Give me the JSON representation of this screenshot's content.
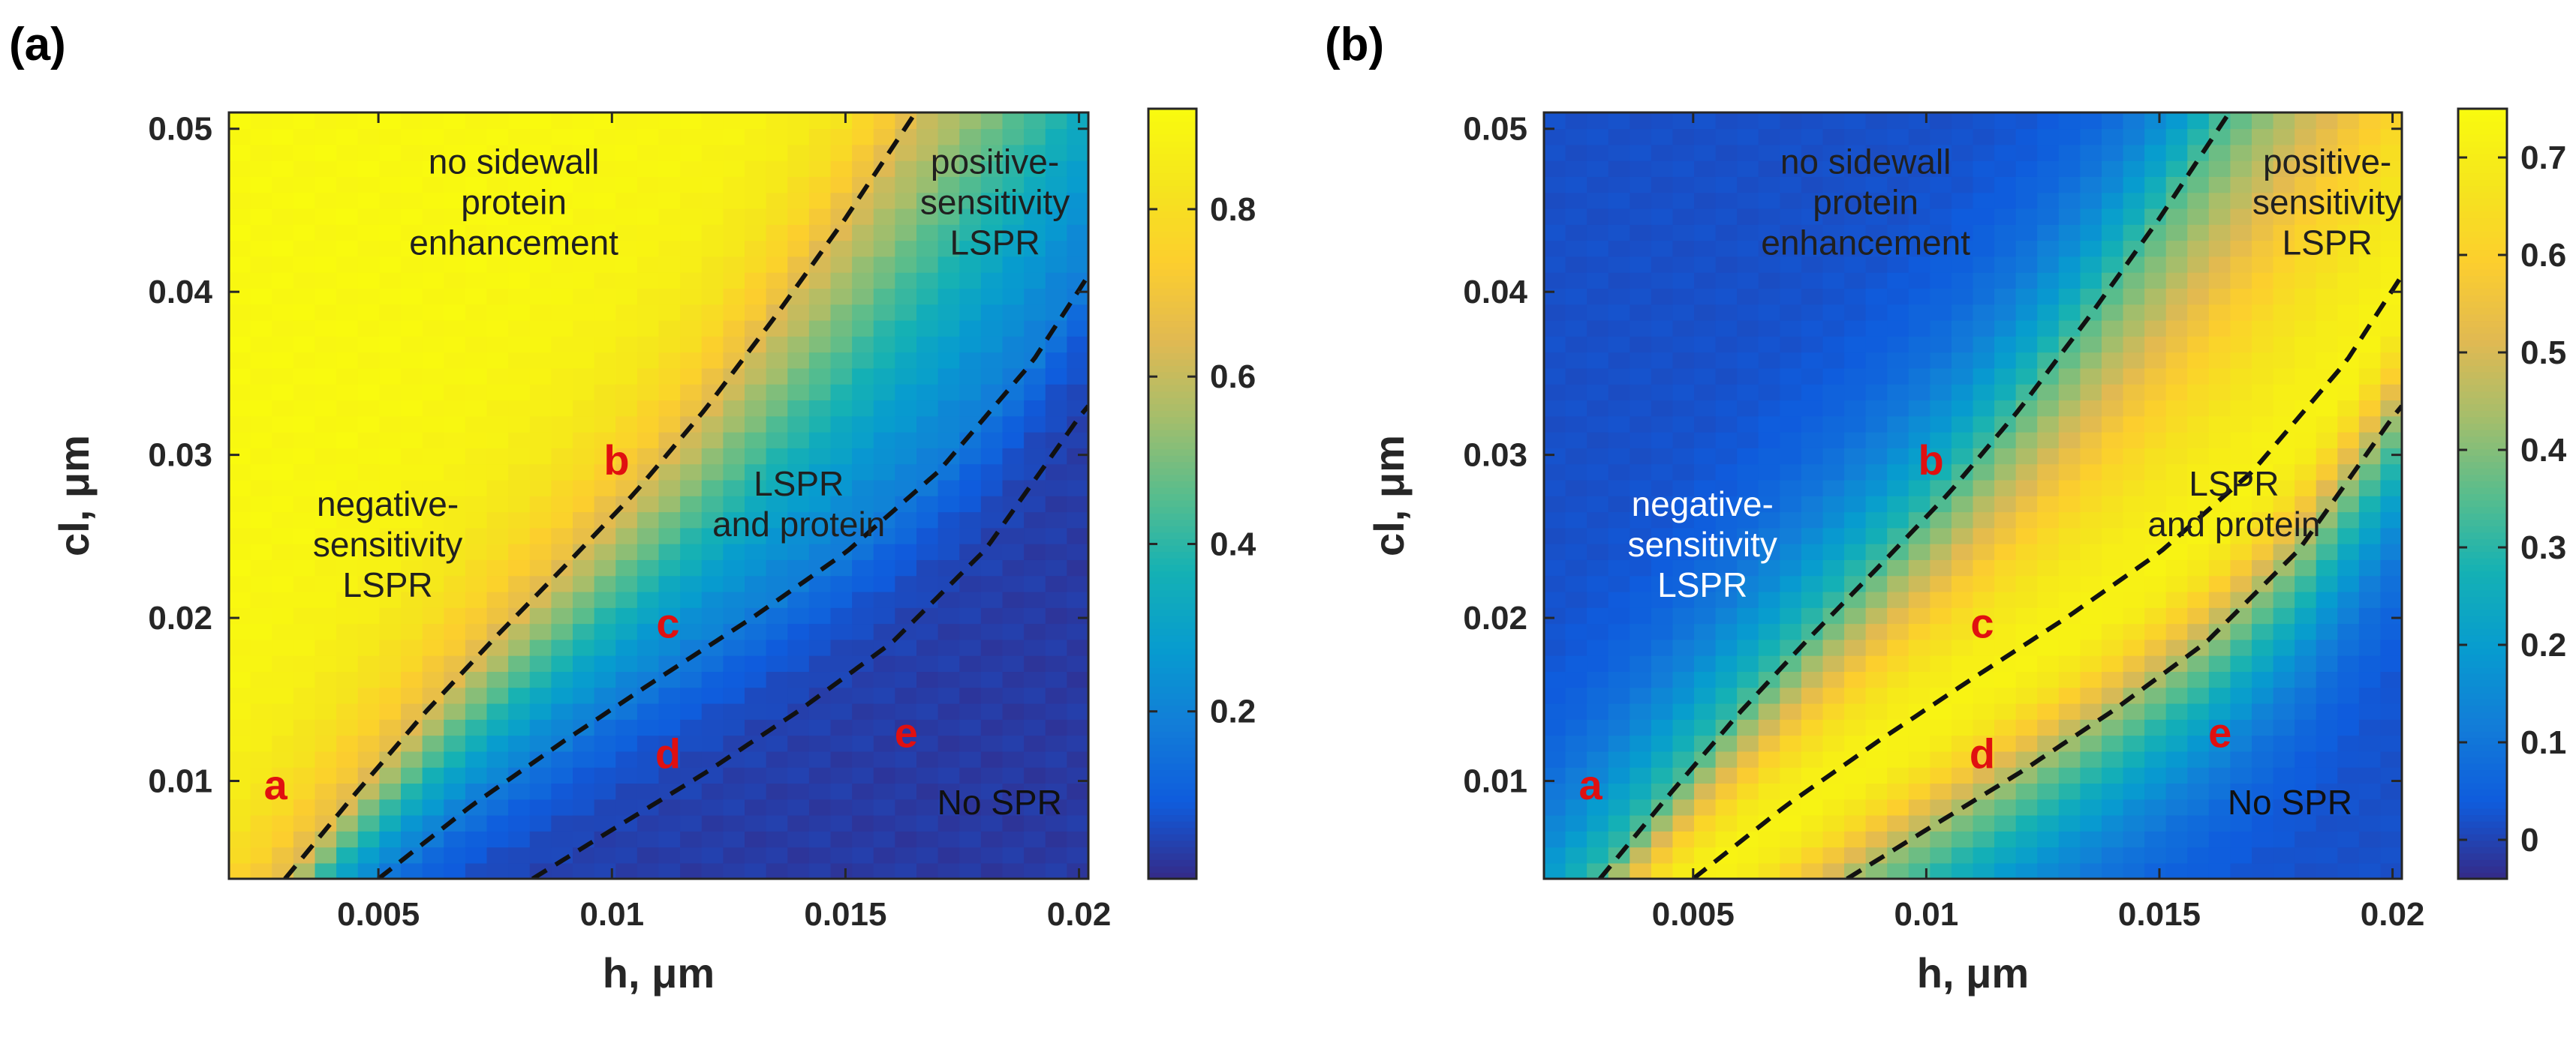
{
  "figure": {
    "type": "heatmap"
  },
  "chart_data": [
    {
      "type": "heatmap",
      "panel_label": "(a)",
      "xlabel_main": "h, ",
      "xlabel_unit": "μm",
      "ylabel_main": "cl, ",
      "ylabel_unit": "μm",
      "xlim": [
        0.0018,
        0.0202
      ],
      "ylim": [
        0.004,
        0.051
      ],
      "xticks": [
        0.005,
        0.01,
        0.015,
        0.02
      ],
      "xtick_labels": [
        "0.005",
        "0.01",
        "0.015",
        "0.02"
      ],
      "yticks": [
        0.01,
        0.02,
        0.03,
        0.04,
        0.05
      ],
      "ytick_labels": [
        "0.01",
        "0.02",
        "0.03",
        "0.04",
        "0.05"
      ],
      "colorbar": {
        "min": 0.0,
        "max": 0.92,
        "ticks": [
          0.2,
          0.4,
          0.6,
          0.8
        ],
        "tick_labels": [
          "0.2",
          "0.4",
          "0.6",
          "0.8"
        ]
      },
      "field": {
        "mode": "descending",
        "high": 0.91,
        "low": 0.03,
        "contrast": 0.1
      },
      "dashed_curves": [
        {
          "name": "boundary-1",
          "h": [
            0.003,
            0.0045,
            0.006,
            0.0075,
            0.009,
            0.0105,
            0.012,
            0.0135,
            0.015,
            0.0165
          ],
          "cl": [
            0.004,
            0.0092,
            0.0142,
            0.0188,
            0.0232,
            0.0277,
            0.0328,
            0.0385,
            0.0445,
            0.051
          ]
        },
        {
          "name": "boundary-2",
          "h": [
            0.005,
            0.007,
            0.009,
            0.011,
            0.013,
            0.015,
            0.017,
            0.019,
            0.0202
          ],
          "cl": [
            0.004,
            0.0085,
            0.0125,
            0.0163,
            0.02,
            0.024,
            0.029,
            0.0357,
            0.041
          ]
        },
        {
          "name": "boundary-3",
          "h": [
            0.0083,
            0.01,
            0.012,
            0.014,
            0.016,
            0.018,
            0.02,
            0.0202
          ],
          "cl": [
            0.004,
            0.007,
            0.0105,
            0.0143,
            0.0185,
            0.0242,
            0.0323,
            0.033
          ]
        }
      ],
      "region_labels": [
        {
          "lines": [
            "no sidewall",
            "protein",
            "enhancement"
          ],
          "h": 0.0079,
          "cl": 0.0455,
          "color": "#202020"
        },
        {
          "lines": [
            "positive-",
            "sensitivity",
            "LSPR"
          ],
          "h": 0.0182,
          "cl": 0.0455,
          "color": "#202020"
        },
        {
          "lines": [
            "negative-",
            "sensitivity",
            "LSPR"
          ],
          "h": 0.0052,
          "cl": 0.0245,
          "color": "#202020"
        },
        {
          "lines": [
            "LSPR",
            "and protein"
          ],
          "h": 0.014,
          "cl": 0.027,
          "color": "#202020"
        },
        {
          "lines": [
            "No SPR"
          ],
          "h": 0.0183,
          "cl": 0.0087,
          "color": "#101010"
        }
      ],
      "point_labels": [
        {
          "text": "a",
          "h": 0.0028,
          "cl": 0.0098
        },
        {
          "text": "b",
          "h": 0.0101,
          "cl": 0.0297
        },
        {
          "text": "c",
          "h": 0.0112,
          "cl": 0.0197
        },
        {
          "text": "d",
          "h": 0.0112,
          "cl": 0.0117
        },
        {
          "text": "e",
          "h": 0.0163,
          "cl": 0.013
        }
      ]
    },
    {
      "type": "heatmap",
      "panel_label": "(b)",
      "xlabel_main": "h, ",
      "xlabel_unit": "μm",
      "ylabel_main": "cl, ",
      "ylabel_unit": "μm",
      "xlim": [
        0.0018,
        0.0202
      ],
      "ylim": [
        0.004,
        0.051
      ],
      "xticks": [
        0.005,
        0.01,
        0.015,
        0.02
      ],
      "xtick_labels": [
        "0.005",
        "0.01",
        "0.015",
        "0.02"
      ],
      "yticks": [
        0.01,
        0.02,
        0.03,
        0.04,
        0.05
      ],
      "ytick_labels": [
        "0.01",
        "0.02",
        "0.03",
        "0.04",
        "0.05"
      ],
      "colorbar": {
        "min": -0.04,
        "max": 0.75,
        "ticks": [
          0,
          0.1,
          0.2,
          0.3,
          0.4,
          0.5,
          0.6,
          0.7
        ],
        "tick_labels": [
          "0",
          "0.1",
          "0.2",
          "0.3",
          "0.4",
          "0.5",
          "0.6",
          "0.7"
        ]
      },
      "field": {
        "mode": "ridge",
        "high": 0.72,
        "low": 0.02,
        "contrast": 0.06
      },
      "dashed_curves": [
        {
          "name": "boundary-1",
          "h": [
            0.003,
            0.0045,
            0.006,
            0.0075,
            0.009,
            0.0105,
            0.012,
            0.0135,
            0.015,
            0.0165
          ],
          "cl": [
            0.004,
            0.0092,
            0.0142,
            0.0188,
            0.0232,
            0.0277,
            0.0328,
            0.0385,
            0.0445,
            0.051
          ]
        },
        {
          "name": "boundary-2",
          "h": [
            0.005,
            0.007,
            0.009,
            0.011,
            0.013,
            0.015,
            0.017,
            0.019,
            0.0202
          ],
          "cl": [
            0.004,
            0.0085,
            0.0125,
            0.0163,
            0.02,
            0.024,
            0.029,
            0.0357,
            0.041
          ]
        },
        {
          "name": "boundary-3",
          "h": [
            0.0083,
            0.01,
            0.012,
            0.014,
            0.016,
            0.018,
            0.02,
            0.0202
          ],
          "cl": [
            0.004,
            0.007,
            0.0105,
            0.0143,
            0.0185,
            0.0242,
            0.0323,
            0.033
          ]
        }
      ],
      "region_labels": [
        {
          "lines": [
            "no sidewall",
            "protein",
            "enhancement"
          ],
          "h": 0.0087,
          "cl": 0.0455,
          "color": "#202020"
        },
        {
          "lines": [
            "positive-",
            "sensitivity",
            "LSPR"
          ],
          "h": 0.0186,
          "cl": 0.0455,
          "color": "#202020"
        },
        {
          "lines": [
            "negative-",
            "sensitivity",
            "LSPR"
          ],
          "h": 0.0052,
          "cl": 0.0245,
          "color": "#ffffff"
        },
        {
          "lines": [
            "LSPR",
            "and protein"
          ],
          "h": 0.0166,
          "cl": 0.027,
          "color": "#202020"
        },
        {
          "lines": [
            "No SPR"
          ],
          "h": 0.0178,
          "cl": 0.0087,
          "color": "#101010"
        }
      ],
      "point_labels": [
        {
          "text": "a",
          "h": 0.0028,
          "cl": 0.0098
        },
        {
          "text": "b",
          "h": 0.0101,
          "cl": 0.0297
        },
        {
          "text": "c",
          "h": 0.0112,
          "cl": 0.0197
        },
        {
          "text": "d",
          "h": 0.0112,
          "cl": 0.0117
        },
        {
          "text": "e",
          "h": 0.0163,
          "cl": 0.013
        }
      ]
    }
  ]
}
